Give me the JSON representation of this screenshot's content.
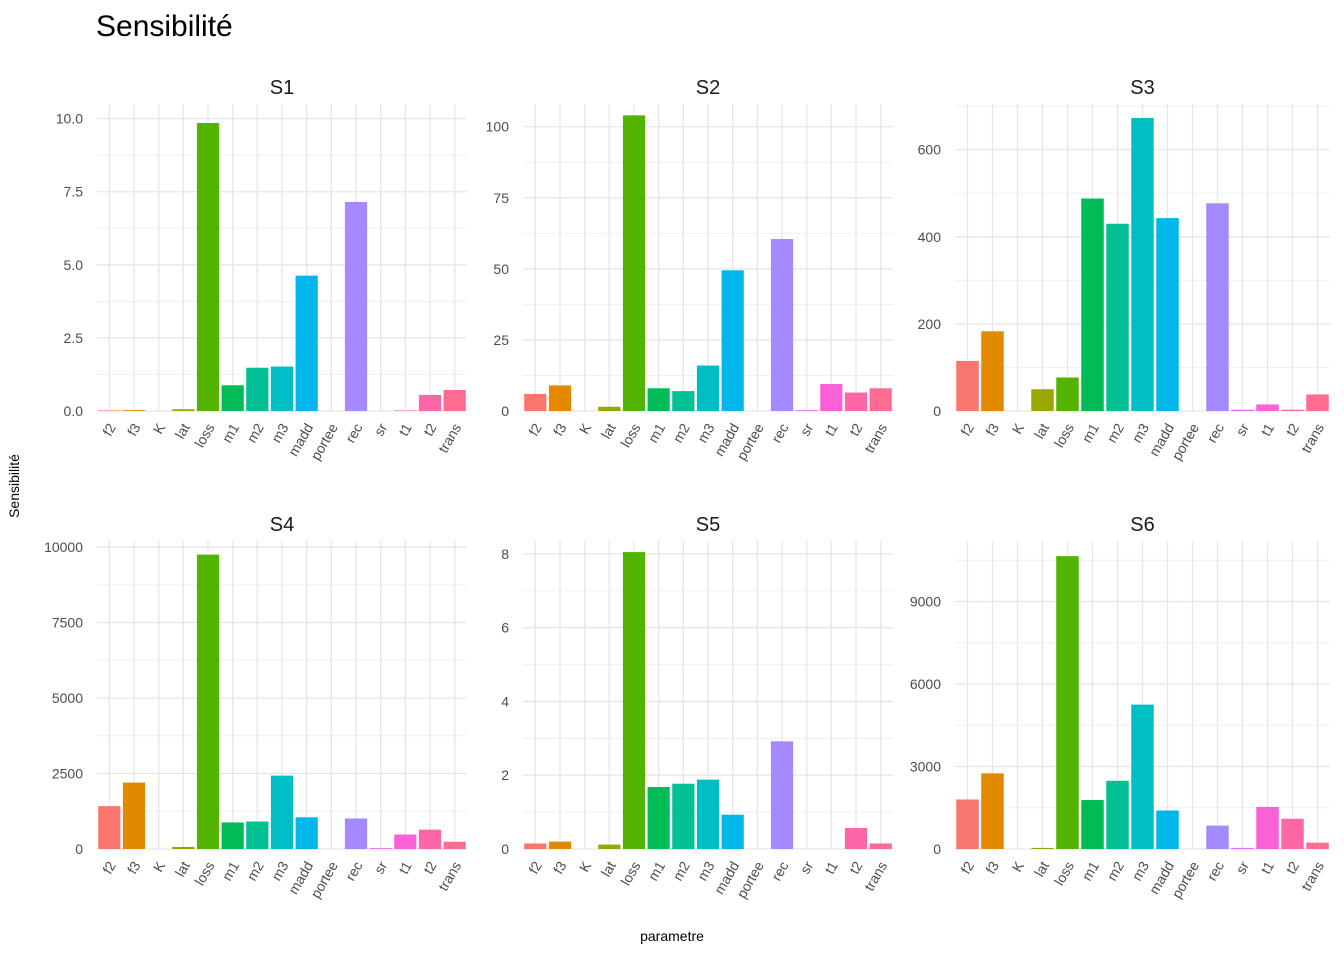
{
  "title": "Sensibilité",
  "y_label": "Sensibilité",
  "x_label": "parametre",
  "chart_data": {
    "type": "bar",
    "categories": [
      "f2",
      "f3",
      "K",
      "lat",
      "loss",
      "m1",
      "m2",
      "m3",
      "madd",
      "portee",
      "rec",
      "sr",
      "t1",
      "t2",
      "trans"
    ],
    "colors": [
      "#F8766D",
      "#E38900",
      "#C49A00",
      "#99A800",
      "#53B400",
      "#00BC56",
      "#00C094",
      "#00BFC4",
      "#00B6EB",
      "#06A4FF",
      "#A58AFF",
      "#DF70F8",
      "#FB61D7",
      "#FF66A8",
      "#FF6C91"
    ],
    "panels": [
      {
        "name": "S1",
        "values": [
          0.02,
          0.03,
          0,
          0.06,
          9.85,
          0.88,
          1.48,
          1.52,
          4.63,
          0,
          7.15,
          0,
          0.02,
          0.55,
          0.72
        ],
        "ylim": [
          0,
          10.5
        ],
        "yticks": [
          0,
          2.5,
          5,
          7.5,
          10
        ],
        "yticklabels": [
          "0.0",
          "2.5",
          "5.0",
          "7.5",
          "10.0"
        ]
      },
      {
        "name": "S2",
        "values": [
          6,
          9,
          0,
          1.5,
          104,
          8,
          7,
          16,
          49.5,
          0,
          60.5,
          0.3,
          9.5,
          6.5,
          8
        ],
        "ylim": [
          0,
          108
        ],
        "yticks": [
          0,
          25,
          50,
          75,
          100
        ],
        "yticklabels": [
          "0",
          "25",
          "50",
          "75",
          "100"
        ]
      },
      {
        "name": "S3",
        "values": [
          115,
          183,
          0,
          50,
          77,
          488,
          430,
          673,
          443,
          0,
          477,
          3,
          15,
          3,
          38
        ],
        "ylim": [
          0,
          705
        ],
        "yticks": [
          0,
          200,
          400,
          600
        ],
        "yticklabels": [
          "0",
          "200",
          "400",
          "600"
        ]
      },
      {
        "name": "S4",
        "values": [
          1420,
          2200,
          0,
          70,
          9750,
          880,
          910,
          2430,
          1050,
          0,
          1010,
          30,
          480,
          640,
          240
        ],
        "ylim": [
          0,
          10200
        ],
        "yticks": [
          0,
          2500,
          5000,
          7500,
          10000
        ],
        "yticklabels": [
          "0",
          "2500",
          "5000",
          "7500",
          "10000"
        ]
      },
      {
        "name": "S5",
        "values": [
          0.15,
          0.2,
          0,
          0.12,
          8.05,
          1.68,
          1.77,
          1.88,
          0.93,
          0,
          2.92,
          0,
          0,
          0.57,
          0.15
        ],
        "ylim": [
          0,
          8.35
        ],
        "yticks": [
          0,
          2,
          4,
          6,
          8
        ],
        "yticklabels": [
          "0",
          "2",
          "4",
          "6",
          "8"
        ]
      },
      {
        "name": "S6",
        "values": [
          1800,
          2750,
          0,
          40,
          10650,
          1780,
          2480,
          5250,
          1400,
          0,
          850,
          40,
          1530,
          1100,
          230
        ],
        "ylim": [
          0,
          11200
        ],
        "yticks": [
          0,
          3000,
          6000,
          9000
        ],
        "yticklabels": [
          "0",
          "3000",
          "6000",
          "9000"
        ]
      }
    ]
  }
}
